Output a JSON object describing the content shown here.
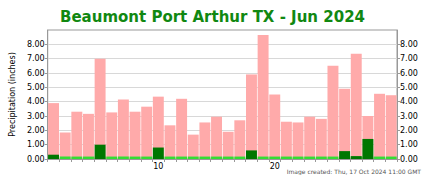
{
  "chart_data": {
    "type": "bar",
    "title": "Beaumont Port Arthur TX - Jun 2024",
    "y_label": "Precipitation (inches)",
    "footer": "Image created: Thu, 17 Oct 2024 11:00 GMT",
    "categories": [
      null,
      null,
      null,
      null,
      null,
      null,
      null,
      null,
      null,
      "10",
      null,
      null,
      null,
      null,
      null,
      null,
      null,
      null,
      null,
      "20",
      null,
      null,
      null,
      null,
      null,
      null,
      null,
      null,
      null,
      null
    ],
    "series": [
      {
        "color": "#ffaaaa",
        "values": [
          3.9,
          1.85,
          3.3,
          3.15,
          7.0,
          3.25,
          4.15,
          3.3,
          3.65,
          4.35,
          2.35,
          4.2,
          1.7,
          2.55,
          2.95,
          1.9,
          2.7,
          5.9,
          8.65,
          4.5,
          2.6,
          2.55,
          2.95,
          2.8,
          6.5,
          4.9,
          7.35,
          3.0,
          4.55,
          4.45
        ]
      },
      {
        "color": "#33dd33",
        "values": [
          0.17,
          0.17,
          0.17,
          0.17,
          0.17,
          0.17,
          0.17,
          0.17,
          0.17,
          0.17,
          0.17,
          0.17,
          0.17,
          0.17,
          0.17,
          0.17,
          0.17,
          0.17,
          0.17,
          0.17,
          0.17,
          0.17,
          0.17,
          0.17,
          0.17,
          0.17,
          0.17,
          0.17,
          0.17,
          0.17
        ]
      },
      {
        "color": "#007700",
        "values": [
          0.3,
          0,
          0,
          0,
          1.0,
          0,
          0,
          0,
          0,
          0.8,
          0,
          0,
          0,
          0,
          0,
          0,
          0,
          0.6,
          0,
          0,
          0,
          0,
          0,
          0,
          0,
          0.55,
          0.2,
          1.4,
          0,
          0
        ]
      }
    ],
    "ylim": [
      0,
      9
    ],
    "yticks": [
      {
        "value": 0,
        "label": "0.00"
      },
      {
        "value": 1,
        "label": "1.00"
      },
      {
        "value": 2,
        "label": "2.00"
      },
      {
        "value": 3,
        "label": "3.00"
      },
      {
        "value": 4,
        "label": "4.00"
      },
      {
        "value": 5,
        "label": "5.00"
      },
      {
        "value": 6,
        "label": "6.00"
      },
      {
        "value": 7,
        "label": "7.00"
      },
      {
        "value": 8,
        "label": "8.00"
      }
    ],
    "y2lim": [
      0,
      9
    ],
    "y2ticks": [
      {
        "value": 0,
        "label": "0.00"
      },
      {
        "value": 1,
        "label": "1.00"
      },
      {
        "value": 2,
        "label": "2.00"
      },
      {
        "value": 3,
        "label": "3.00"
      },
      {
        "value": 4,
        "label": "4.00"
      },
      {
        "value": 5,
        "label": "5.00"
      },
      {
        "value": 6,
        "label": "6.00"
      },
      {
        "value": 7,
        "label": "7.00"
      },
      {
        "value": 8,
        "label": "8.00"
      }
    ],
    "grid": true
  }
}
